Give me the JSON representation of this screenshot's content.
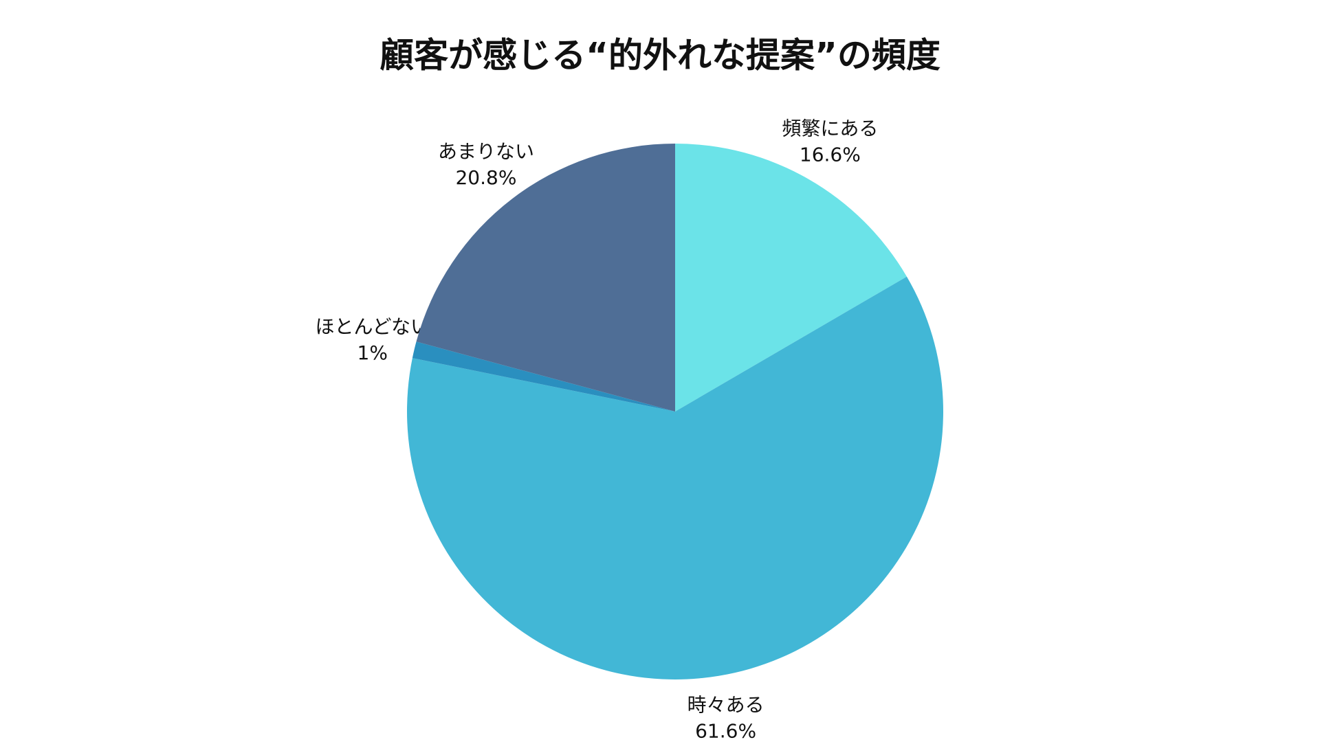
{
  "chart_data": {
    "type": "pie",
    "title": "顧客が感じる“的外れな提案”の頻度",
    "categories": [
      "頻繁にある",
      "時々ある",
      "ほとんどない",
      "あまりない"
    ],
    "values": [
      16.6,
      61.6,
      1,
      20.8
    ],
    "value_labels": [
      "16.6%",
      "61.6%",
      "1%",
      "20.8%"
    ],
    "colors": [
      "#6be3e8",
      "#42b7d6",
      "#2a8fbf",
      "#4f6e96"
    ]
  }
}
